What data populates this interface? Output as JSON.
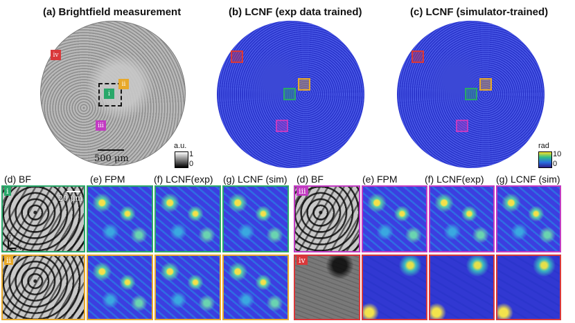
{
  "titles": {
    "a": "(a) Brightfield measurement",
    "b": "(b) LCNF (exp data trained)",
    "c": "(c) LCNF (simulator-trained)"
  },
  "scale_bar": "500 μm",
  "scale_bar_small": "20 μm",
  "colorbar_bf": {
    "unit": "a.u.",
    "max": "1",
    "min": "0"
  },
  "colorbar_phase": {
    "unit": "rad",
    "max": "10",
    "min": "0"
  },
  "roi_labels": [
    "i",
    "ii",
    "iii",
    "iv"
  ],
  "roi_colors": {
    "i": "#2aa86a",
    "ii": "#e8a92a",
    "iii": "#c23bc2",
    "iv": "#d9383a"
  },
  "row_titles": {
    "d": "(d) BF",
    "e": "(e) FPM",
    "f": "(f) LCNF(exp)",
    "g": "(g) LCNF (sim)"
  },
  "axis": {
    "y": "y",
    "x": "x"
  }
}
